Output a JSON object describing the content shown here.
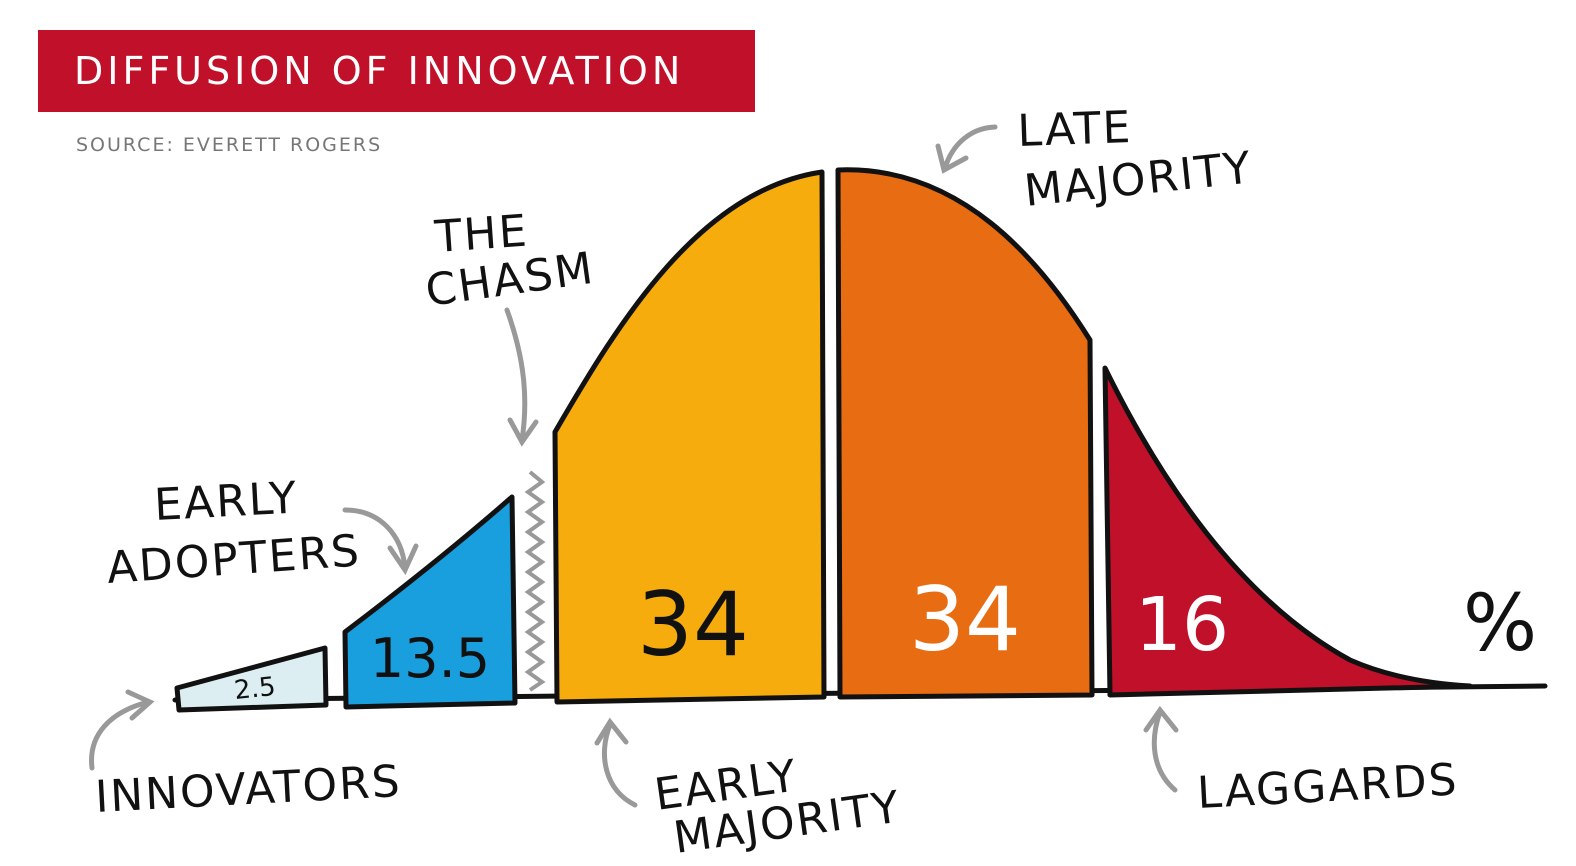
{
  "title": "DIFFUSION OF INNOVATION",
  "source": "SOURCE: EVERETT ROGERS",
  "chasm_label": [
    "THE",
    "CHASM"
  ],
  "percent_symbol": "%",
  "colors": {
    "title_bg": "#c0102a",
    "innovators": "#dceef2",
    "early_adopters": "#1a9fde",
    "early_majority": "#f5ac0c",
    "late_majority": "#e86c12",
    "laggards": "#c0102a",
    "arrow": "#999999"
  },
  "chart_data": {
    "type": "area",
    "title": "DIFFUSION OF INNOVATION",
    "unit": "%",
    "segments": [
      {
        "name": "INNOVATORS",
        "label_lines": [
          "INNOVATORS"
        ],
        "value": 2.5,
        "value_label": "2.5"
      },
      {
        "name": "EARLY ADOPTERS",
        "label_lines": [
          "EARLY",
          "ADOPTERS"
        ],
        "value": 13.5,
        "value_label": "13.5"
      },
      {
        "name": "EARLY MAJORITY",
        "label_lines": [
          "EARLY",
          "MAJORITY"
        ],
        "value": 34,
        "value_label": "34"
      },
      {
        "name": "LATE MAJORITY",
        "label_lines": [
          "LATE",
          "MAJORITY"
        ],
        "value": 34,
        "value_label": "34"
      },
      {
        "name": "LAGGARDS",
        "label_lines": [
          "LAGGARDS"
        ],
        "value": 16,
        "value_label": "16"
      }
    ]
  }
}
